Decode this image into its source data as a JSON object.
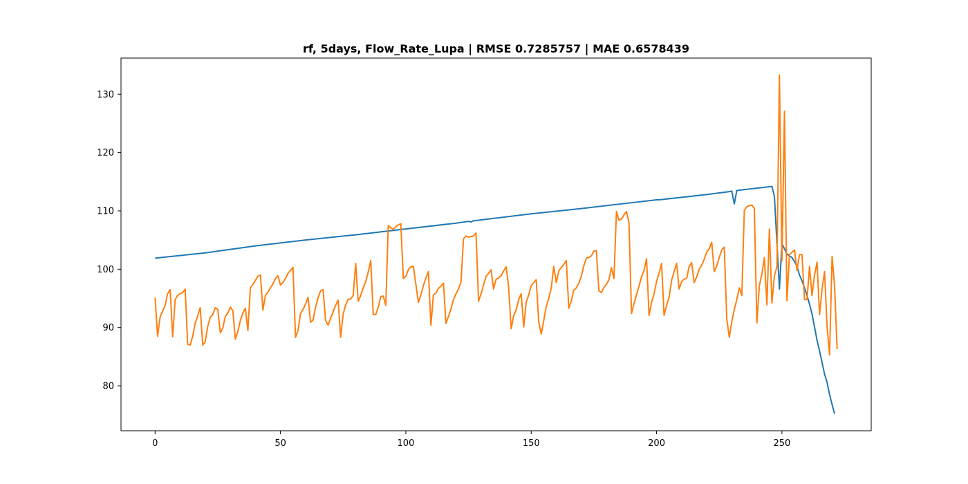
{
  "chart_data": {
    "type": "line",
    "title": "rf, 5days, Flow_Rate_Lupa | RMSE 0.7285757 | MAE 0.6578439",
    "xlabel": "",
    "ylabel": "",
    "xlim": [
      -13.6,
      285.6
    ],
    "ylim": [
      72.3,
      136.2
    ],
    "xticks": [
      0,
      50,
      100,
      150,
      200,
      250
    ],
    "yticks": [
      80,
      90,
      100,
      110,
      120,
      130
    ],
    "grid": false,
    "series": [
      {
        "color": "#1f77b4",
        "points": [
          [
            0,
            101.9
          ],
          [
            20,
            102.8
          ],
          [
            40,
            104.0
          ],
          [
            60,
            105.0
          ],
          [
            80,
            105.9
          ],
          [
            100,
            106.9
          ],
          [
            120,
            107.9
          ],
          [
            125,
            108.2
          ],
          [
            126,
            108.1
          ],
          [
            127,
            108.3
          ],
          [
            150,
            109.5
          ],
          [
            170,
            110.4
          ],
          [
            190,
            111.4
          ],
          [
            200,
            111.9
          ],
          [
            201,
            111.9
          ],
          [
            220,
            112.8
          ],
          [
            229,
            113.3
          ],
          [
            230,
            113.4
          ],
          [
            231,
            111.2
          ],
          [
            232,
            113.5
          ],
          [
            240,
            113.9
          ],
          [
            246,
            114.2
          ],
          [
            247,
            112.5
          ],
          [
            248,
            104.5
          ],
          [
            249,
            96.6
          ],
          [
            250,
            104.4
          ],
          [
            251,
            103.5
          ],
          [
            252,
            102.6
          ],
          [
            253,
            102.3
          ],
          [
            254,
            102.0
          ],
          [
            255,
            101.3
          ],
          [
            256,
            100.5
          ],
          [
            257,
            99.0
          ],
          [
            258,
            98.0
          ],
          [
            259,
            96.8
          ],
          [
            260,
            95.5
          ],
          [
            261,
            94.0
          ],
          [
            262,
            92.3
          ],
          [
            263,
            90.1
          ],
          [
            264,
            87.8
          ],
          [
            265,
            86.0
          ],
          [
            266,
            84.0
          ],
          [
            267,
            82.0
          ],
          [
            268,
            80.6
          ],
          [
            269,
            78.5
          ],
          [
            270,
            76.8
          ],
          [
            271,
            75.2
          ]
        ]
      },
      {
        "color": "#ff7f0e",
        "points": [
          [
            0,
            95.1
          ],
          [
            1,
            88.5
          ],
          [
            2,
            91.8
          ],
          [
            3,
            92.8
          ],
          [
            4,
            93.8
          ],
          [
            5,
            95.8
          ],
          [
            6,
            96.5
          ],
          [
            7,
            88.4
          ],
          [
            8,
            94.8
          ],
          [
            9,
            95.5
          ],
          [
            10,
            95.8
          ],
          [
            11,
            96.0
          ],
          [
            12,
            96.6
          ],
          [
            13,
            87.1
          ],
          [
            14,
            87.0
          ],
          [
            15,
            88.5
          ],
          [
            16,
            90.8
          ],
          [
            17,
            92.0
          ],
          [
            18,
            93.4
          ],
          [
            19,
            87.0
          ],
          [
            20,
            87.6
          ],
          [
            21,
            90.2
          ],
          [
            22,
            91.8
          ],
          [
            23,
            92.2
          ],
          [
            24,
            93.4
          ],
          [
            25,
            93.1
          ],
          [
            26,
            89.1
          ],
          [
            27,
            89.9
          ],
          [
            28,
            91.9
          ],
          [
            29,
            92.5
          ],
          [
            30,
            93.5
          ],
          [
            31,
            92.9
          ],
          [
            32,
            88.0
          ],
          [
            33,
            89.3
          ],
          [
            34,
            91.2
          ],
          [
            35,
            92.5
          ],
          [
            36,
            93.3
          ],
          [
            37,
            89.5
          ],
          [
            38,
            96.8
          ],
          [
            39,
            97.4
          ],
          [
            40,
            98.1
          ],
          [
            41,
            98.8
          ],
          [
            42,
            99.0
          ],
          [
            43,
            93.0
          ],
          [
            44,
            95.5
          ],
          [
            45,
            96.1
          ],
          [
            46,
            96.8
          ],
          [
            47,
            97.5
          ],
          [
            48,
            98.4
          ],
          [
            49,
            98.9
          ],
          [
            50,
            97.3
          ],
          [
            51,
            97.7
          ],
          [
            52,
            98.4
          ],
          [
            53,
            99.3
          ],
          [
            54,
            99.8
          ],
          [
            55,
            100.3
          ],
          [
            56,
            88.3
          ],
          [
            57,
            89.5
          ],
          [
            58,
            92.4
          ],
          [
            59,
            93.1
          ],
          [
            60,
            94.0
          ],
          [
            61,
            95.2
          ],
          [
            62,
            90.9
          ],
          [
            63,
            91.3
          ],
          [
            64,
            93.5
          ],
          [
            65,
            95.1
          ],
          [
            66,
            96.3
          ],
          [
            67,
            96.5
          ],
          [
            68,
            91.2
          ],
          [
            69,
            90.4
          ],
          [
            70,
            91.6
          ],
          [
            71,
            92.7
          ],
          [
            72,
            93.8
          ],
          [
            73,
            94.7
          ],
          [
            74,
            88.3
          ],
          [
            75,
            92.3
          ],
          [
            76,
            93.9
          ],
          [
            77,
            94.8
          ],
          [
            78,
            94.9
          ],
          [
            79,
            95.5
          ],
          [
            80,
            101.0
          ],
          [
            81,
            94.5
          ],
          [
            82,
            95.5
          ],
          [
            83,
            96.8
          ],
          [
            84,
            97.9
          ],
          [
            85,
            99.5
          ],
          [
            86,
            101.5
          ],
          [
            87,
            92.2
          ],
          [
            88,
            92.2
          ],
          [
            89,
            93.5
          ],
          [
            90,
            95.3
          ],
          [
            91,
            95.4
          ],
          [
            92,
            93.8
          ],
          [
            93,
            107.5
          ],
          [
            94,
            107.1
          ],
          [
            95,
            106.8
          ],
          [
            96,
            107.3
          ],
          [
            97,
            107.6
          ],
          [
            98,
            107.8
          ],
          [
            99,
            98.4
          ],
          [
            100,
            98.8
          ],
          [
            101,
            99.9
          ],
          [
            102,
            100.4
          ],
          [
            103,
            100.5
          ],
          [
            104,
            97.4
          ],
          [
            105,
            94.3
          ],
          [
            106,
            95.6
          ],
          [
            107,
            97.2
          ],
          [
            108,
            98.5
          ],
          [
            109,
            99.6
          ],
          [
            110,
            90.4
          ],
          [
            111,
            95.6
          ],
          [
            112,
            95.9
          ],
          [
            113,
            96.7
          ],
          [
            114,
            97.1
          ],
          [
            115,
            97.6
          ],
          [
            116,
            90.7
          ],
          [
            117,
            91.9
          ],
          [
            118,
            93.2
          ],
          [
            119,
            94.8
          ],
          [
            120,
            95.8
          ],
          [
            121,
            96.6
          ],
          [
            122,
            97.8
          ],
          [
            123,
            105.2
          ],
          [
            124,
            105.7
          ],
          [
            125,
            105.5
          ],
          [
            126,
            105.6
          ],
          [
            127,
            105.7
          ],
          [
            128,
            106.2
          ],
          [
            129,
            94.5
          ],
          [
            130,
            95.8
          ],
          [
            131,
            97.3
          ],
          [
            132,
            98.8
          ],
          [
            133,
            99.3
          ],
          [
            134,
            99.9
          ],
          [
            135,
            96.6
          ],
          [
            136,
            98.3
          ],
          [
            137,
            98.5
          ],
          [
            138,
            98.9
          ],
          [
            139,
            99.7
          ],
          [
            140,
            100.4
          ],
          [
            141,
            97.0
          ],
          [
            142,
            89.8
          ],
          [
            143,
            92.0
          ],
          [
            144,
            93.0
          ],
          [
            145,
            94.8
          ],
          [
            146,
            95.8
          ],
          [
            147,
            90.1
          ],
          [
            148,
            94.3
          ],
          [
            149,
            95.6
          ],
          [
            150,
            97.2
          ],
          [
            151,
            97.7
          ],
          [
            152,
            98.2
          ],
          [
            153,
            91.0
          ],
          [
            154,
            88.9
          ],
          [
            155,
            91.2
          ],
          [
            156,
            93.6
          ],
          [
            157,
            95.0
          ],
          [
            158,
            96.8
          ],
          [
            159,
            100.5
          ],
          [
            160,
            97.7
          ],
          [
            161,
            99.7
          ],
          [
            162,
            100.3
          ],
          [
            163,
            100.8
          ],
          [
            164,
            101.5
          ],
          [
            165,
            93.3
          ],
          [
            166,
            94.6
          ],
          [
            167,
            96.4
          ],
          [
            168,
            96.8
          ],
          [
            169,
            97.6
          ],
          [
            170,
            98.8
          ],
          [
            171,
            100.6
          ],
          [
            172,
            101.9
          ],
          [
            173,
            102.0
          ],
          [
            174,
            102.3
          ],
          [
            175,
            103.1
          ],
          [
            176,
            103.2
          ],
          [
            177,
            96.3
          ],
          [
            178,
            96.0
          ],
          [
            179,
            96.9
          ],
          [
            180,
            97.4
          ],
          [
            181,
            98.2
          ],
          [
            182,
            100.3
          ],
          [
            183,
            98.4
          ],
          [
            184,
            109.9
          ],
          [
            185,
            108.4
          ],
          [
            186,
            108.6
          ],
          [
            187,
            109.3
          ],
          [
            188,
            109.9
          ],
          [
            189,
            108.0
          ],
          [
            190,
            92.4
          ],
          [
            191,
            94.1
          ],
          [
            192,
            95.6
          ],
          [
            193,
            97.1
          ],
          [
            194,
            98.7
          ],
          [
            195,
            99.8
          ],
          [
            196,
            101.8
          ],
          [
            197,
            92.1
          ],
          [
            198,
            94.3
          ],
          [
            199,
            95.8
          ],
          [
            200,
            97.9
          ],
          [
            201,
            99.3
          ],
          [
            202,
            101.0
          ],
          [
            203,
            92.1
          ],
          [
            204,
            93.8
          ],
          [
            205,
            95.2
          ],
          [
            206,
            98.1
          ],
          [
            207,
            99.6
          ],
          [
            208,
            101.0
          ],
          [
            209,
            96.6
          ],
          [
            210,
            97.9
          ],
          [
            211,
            98.3
          ],
          [
            212,
            98.4
          ],
          [
            213,
            100.5
          ],
          [
            214,
            101.1
          ],
          [
            215,
            97.7
          ],
          [
            216,
            98.7
          ],
          [
            217,
            100.0
          ],
          [
            218,
            100.7
          ],
          [
            219,
            101.7
          ],
          [
            220,
            102.9
          ],
          [
            221,
            103.5
          ],
          [
            222,
            104.6
          ],
          [
            223,
            99.6
          ],
          [
            224,
            100.6
          ],
          [
            225,
            102.0
          ],
          [
            226,
            103.3
          ],
          [
            227,
            103.8
          ],
          [
            228,
            91.5
          ],
          [
            229,
            88.3
          ],
          [
            230,
            91.0
          ],
          [
            231,
            93.1
          ],
          [
            232,
            94.8
          ],
          [
            233,
            96.8
          ],
          [
            234,
            95.5
          ],
          [
            235,
            110.1
          ],
          [
            236,
            110.7
          ],
          [
            237,
            110.9
          ],
          [
            238,
            111.0
          ],
          [
            239,
            110.4
          ],
          [
            240,
            90.8
          ],
          [
            241,
            97.2
          ],
          [
            242,
            99.2
          ],
          [
            243,
            102.0
          ],
          [
            244,
            93.9
          ],
          [
            245,
            106.9
          ],
          [
            246,
            94.2
          ],
          [
            247,
            98.9
          ],
          [
            248,
            100.4
          ],
          [
            249,
            133.3
          ],
          [
            250,
            101.4
          ],
          [
            251,
            127.1
          ],
          [
            252,
            94.6
          ],
          [
            253,
            102.5
          ],
          [
            254,
            102.9
          ],
          [
            255,
            103.3
          ],
          [
            256,
            99.8
          ],
          [
            257,
            102.5
          ],
          [
            258,
            102.5
          ],
          [
            259,
            94.8
          ],
          [
            260,
            94.8
          ],
          [
            261,
            100.5
          ],
          [
            262,
            95.5
          ],
          [
            263,
            99.0
          ],
          [
            264,
            101.2
          ],
          [
            265,
            92.2
          ],
          [
            266,
            96.6
          ],
          [
            267,
            99.6
          ],
          [
            268,
            90.2
          ],
          [
            269,
            85.3
          ],
          [
            270,
            102.2
          ],
          [
            271,
            97.0
          ],
          [
            272,
            86.3
          ]
        ]
      }
    ]
  }
}
